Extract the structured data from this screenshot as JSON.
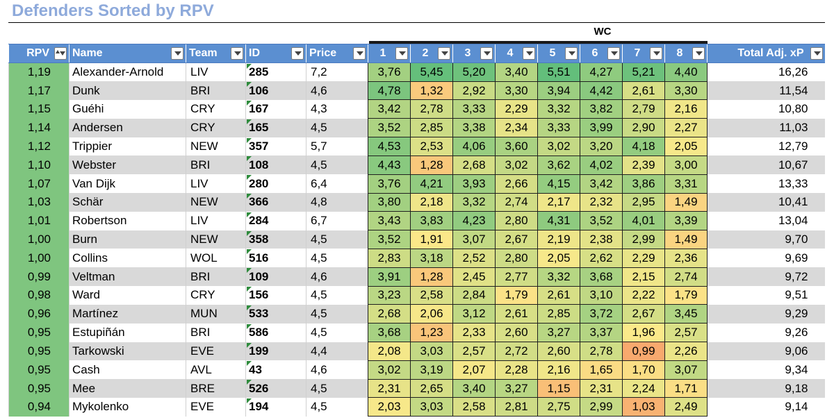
{
  "title": "Defenders Sorted by RPV",
  "wc_label": "WC",
  "columns": {
    "rpv": "RPV",
    "name": "Name",
    "team": "Team",
    "id": "ID",
    "price": "Price",
    "rounds": [
      "1",
      "2",
      "3",
      "4",
      "5",
      "6",
      "7",
      "8"
    ],
    "total": "Total Adj. xP"
  },
  "colors": {
    "header_bg": "#5b8fd1",
    "title": "#8eaadb",
    "rpv_bg": "#7fc57f",
    "scale_low": "#f8a96e",
    "scale_mid": "#fbe98a",
    "scale_high": "#63be7b"
  },
  "rows": [
    {
      "rpv": "1,19",
      "name": "Alexander-Arnold",
      "team": "LIV",
      "id": "285",
      "price": "7,2",
      "rounds": [
        "3,76",
        "5,45",
        "5,20",
        "3,40",
        "5,51",
        "4,27",
        "5,21",
        "4,40"
      ],
      "total": "16,26"
    },
    {
      "rpv": "1,17",
      "name": "Dunk",
      "team": "BRI",
      "id": "106",
      "price": "4,6",
      "rounds": [
        "4,78",
        "1,32",
        "2,92",
        "3,30",
        "3,94",
        "4,42",
        "2,61",
        "3,30"
      ],
      "total": "11,54"
    },
    {
      "rpv": "1,15",
      "name": "Guéhi",
      "team": "CRY",
      "id": "167",
      "price": "4,3",
      "rounds": [
        "3,42",
        "2,78",
        "3,33",
        "2,29",
        "3,32",
        "3,82",
        "2,79",
        "2,16"
      ],
      "total": "10,80"
    },
    {
      "rpv": "1,14",
      "name": "Andersen",
      "team": "CRY",
      "id": "165",
      "price": "4,5",
      "rounds": [
        "3,52",
        "2,85",
        "3,38",
        "2,34",
        "3,33",
        "3,99",
        "2,90",
        "2,27"
      ],
      "total": "11,03"
    },
    {
      "rpv": "1,12",
      "name": "Trippier",
      "team": "NEW",
      "id": "357",
      "price": "5,7",
      "rounds": [
        "4,53",
        "2,53",
        "4,06",
        "3,60",
        "3,02",
        "3,20",
        "4,18",
        "2,05"
      ],
      "total": "12,79"
    },
    {
      "rpv": "1,10",
      "name": "Webster",
      "team": "BRI",
      "id": "108",
      "price": "4,5",
      "rounds": [
        "4,43",
        "1,28",
        "2,68",
        "3,02",
        "3,62",
        "4,02",
        "2,39",
        "3,00"
      ],
      "total": "10,67"
    },
    {
      "rpv": "1,07",
      "name": "Van Dijk",
      "team": "LIV",
      "id": "280",
      "price": "6,4",
      "rounds": [
        "3,76",
        "4,21",
        "3,93",
        "2,66",
        "4,15",
        "3,42",
        "3,86",
        "3,31"
      ],
      "total": "13,33"
    },
    {
      "rpv": "1,03",
      "name": "Schär",
      "team": "NEW",
      "id": "366",
      "price": "4,8",
      "rounds": [
        "3,80",
        "2,18",
        "3,32",
        "2,74",
        "2,17",
        "2,32",
        "2,95",
        "1,49"
      ],
      "total": "10,41"
    },
    {
      "rpv": "1,01",
      "name": "Robertson",
      "team": "LIV",
      "id": "284",
      "price": "6,7",
      "rounds": [
        "3,43",
        "3,83",
        "4,23",
        "2,80",
        "4,31",
        "3,52",
        "4,01",
        "3,39"
      ],
      "total": "13,04"
    },
    {
      "rpv": "1,00",
      "name": "Burn",
      "team": "NEW",
      "id": "358",
      "price": "4,5",
      "rounds": [
        "3,52",
        "1,91",
        "3,07",
        "2,67",
        "2,19",
        "2,38",
        "2,99",
        "1,49"
      ],
      "total": "9,70"
    },
    {
      "rpv": "1,00",
      "name": "Collins",
      "team": "WOL",
      "id": "516",
      "price": "4,5",
      "rounds": [
        "2,83",
        "3,18",
        "2,52",
        "2,80",
        "2,05",
        "2,62",
        "2,29",
        "2,36"
      ],
      "total": "9,69"
    },
    {
      "rpv": "0,99",
      "name": "Veltman",
      "team": "BRI",
      "id": "109",
      "price": "4,6",
      "rounds": [
        "3,91",
        "1,28",
        "2,45",
        "2,77",
        "3,32",
        "3,68",
        "2,15",
        "2,74"
      ],
      "total": "9,72"
    },
    {
      "rpv": "0,98",
      "name": "Ward",
      "team": "CRY",
      "id": "156",
      "price": "4,5",
      "rounds": [
        "3,23",
        "2,58",
        "2,84",
        "1,79",
        "2,61",
        "3,10",
        "2,22",
        "1,79"
      ],
      "total": "9,51"
    },
    {
      "rpv": "0,96",
      "name": "Martínez",
      "team": "MUN",
      "id": "533",
      "price": "4,5",
      "rounds": [
        "2,68",
        "2,06",
        "3,12",
        "2,61",
        "2,85",
        "3,72",
        "2,67",
        "3,45"
      ],
      "total": "9,29"
    },
    {
      "rpv": "0,95",
      "name": "Estupiñán",
      "team": "BRI",
      "id": "586",
      "price": "4,5",
      "rounds": [
        "3,68",
        "1,23",
        "2,33",
        "2,60",
        "3,27",
        "3,37",
        "1,96",
        "2,57"
      ],
      "total": "9,26"
    },
    {
      "rpv": "0,95",
      "name": "Tarkowski",
      "team": "EVE",
      "id": "199",
      "price": "4,4",
      "rounds": [
        "2,08",
        "3,03",
        "2,57",
        "2,72",
        "2,60",
        "2,78",
        "0,99",
        "2,26"
      ],
      "total": "9,06"
    },
    {
      "rpv": "0,95",
      "name": "Cash",
      "team": "AVL",
      "id": "43",
      "price": "4,6",
      "rounds": [
        "3,02",
        "3,19",
        "2,07",
        "2,28",
        "2,16",
        "1,65",
        "1,70",
        "3,07"
      ],
      "total": "9,34"
    },
    {
      "rpv": "0,95",
      "name": "Mee",
      "team": "BRE",
      "id": "526",
      "price": "4,5",
      "rounds": [
        "2,31",
        "2,65",
        "3,40",
        "3,27",
        "1,15",
        "2,31",
        "2,24",
        "1,71"
      ],
      "total": "9,18"
    },
    {
      "rpv": "0,94",
      "name": "Mykolenko",
      "team": "EVE",
      "id": "194",
      "price": "4,5",
      "rounds": [
        "2,03",
        "3,03",
        "2,58",
        "2,81",
        "2,75",
        "2,99",
        "1,03",
        "2,49"
      ],
      "total": "9,14"
    }
  ]
}
